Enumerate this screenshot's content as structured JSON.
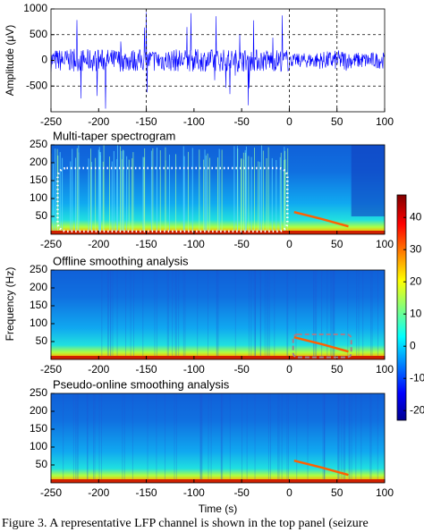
{
  "chart_data": [
    {
      "type": "line",
      "ylabel": "Amplitude (μV)",
      "xlim": [
        -250,
        100
      ],
      "xticks": [
        -250,
        -200,
        -150,
        -100,
        -50,
        0,
        50,
        100
      ],
      "ylim": [
        -1000,
        1000
      ],
      "yticks": [
        -500,
        0,
        500,
        1000
      ],
      "grid_x": [
        -150,
        0,
        50
      ],
      "grid_y": [
        -500,
        500
      ],
      "color": "#0000ff"
    },
    {
      "type": "heatmap",
      "title": "Multi-taper spectrogram",
      "xlim": [
        -250,
        100
      ],
      "xticks": [
        -250,
        -200,
        -150,
        -100,
        -50,
        0,
        50,
        100
      ],
      "ylim": [
        0,
        250
      ],
      "yticks": [
        50,
        100,
        150,
        200,
        250
      ]
    },
    {
      "type": "heatmap",
      "title": "Offline smoothing analysis",
      "ylabel": "Frequency (Hz)",
      "xlim": [
        -250,
        100
      ],
      "xticks": [
        -250,
        -200,
        -150,
        -100,
        -50,
        0,
        50,
        100
      ],
      "ylim": [
        0,
        250
      ],
      "yticks": [
        50,
        100,
        150,
        200,
        250
      ]
    },
    {
      "type": "heatmap",
      "title": "Pseudo-online smoothing analysis",
      "xlabel": "Time (s)",
      "xlim": [
        -250,
        100
      ],
      "xticks": [
        -250,
        -200,
        -150,
        -100,
        -50,
        0,
        50,
        100
      ],
      "ylim": [
        0,
        250
      ],
      "yticks": [
        50,
        100,
        150,
        200,
        250
      ]
    },
    {
      "type": "colorbar",
      "clim": [
        -23,
        47
      ],
      "ticks": [
        -20,
        -10,
        0,
        10,
        20,
        30,
        40
      ]
    }
  ],
  "caption": "Figure 3.  A representative LFP channel is shown in the top panel (seizure"
}
